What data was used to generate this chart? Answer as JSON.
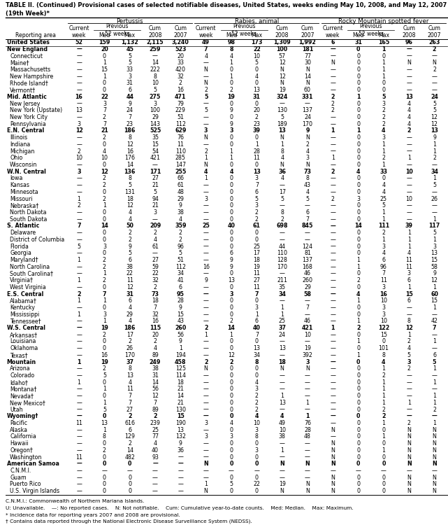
{
  "title": "TABLE II. (Continued) Provisional cases of selected notifiable diseases, United States, weeks ending May 10, 2008, and May 12, 2007",
  "title2": "(19th Week)*",
  "footnotes": [
    "C.N.M.I.: Commonwealth of Northern Mariana Islands.",
    "U: Unavailable.    —: No reported cases.    N: Not notifiable.    Cum: Cumulative year-to-date counts.    Med: Median.    Max: Maximum.",
    "* Incidence data for reporting years 2007 and 2008 are provisional.",
    "† Contains data reported through the National Electronic Disease Surveillance System (NEDSS)."
  ],
  "col_groups": [
    "Pertussis",
    "Rabies, animal",
    "Rocky Mountain spotted fever"
  ],
  "rows": [
    [
      "United States",
      "52",
      "159",
      "1,132",
      "2,115",
      "3,240",
      "49",
      "98",
      "173",
      "1,309",
      "1,992",
      "6",
      "31",
      "165",
      "96",
      "263"
    ],
    [
      "New England",
      "—",
      "20",
      "45",
      "259",
      "523",
      "7",
      "8",
      "22",
      "100",
      "181",
      "—",
      "0",
      "1",
      "—",
      "2"
    ],
    [
      "Connecticut",
      "—",
      "0",
      "5",
      "—",
      "20",
      "4",
      "4",
      "10",
      "57",
      "77",
      "—",
      "0",
      "0",
      "—",
      "—"
    ],
    [
      "Maine†",
      "—",
      "1",
      "5",
      "14",
      "33",
      "—",
      "1",
      "5",
      "12",
      "30",
      "N",
      "0",
      "1",
      "N",
      "N"
    ],
    [
      "Massachusetts",
      "—",
      "15",
      "33",
      "222",
      "420",
      "N",
      "0",
      "0",
      "N",
      "N",
      "—",
      "0",
      "1",
      "—",
      "2"
    ],
    [
      "New Hampshire",
      "—",
      "1",
      "3",
      "8",
      "32",
      "—",
      "1",
      "4",
      "12",
      "14",
      "—",
      "0",
      "1",
      "—",
      "—"
    ],
    [
      "Rhode Island†",
      "—",
      "0",
      "31",
      "10",
      "2",
      "N",
      "0",
      "0",
      "N",
      "N",
      "—",
      "0",
      "0",
      "—",
      "—"
    ],
    [
      "Vermont†",
      "—",
      "0",
      "6",
      "5",
      "16",
      "2",
      "2",
      "13",
      "19",
      "60",
      "—",
      "0",
      "0",
      "—",
      "—"
    ],
    [
      "Mid. Atlantic",
      "16",
      "22",
      "44",
      "275",
      "471",
      "5",
      "19",
      "31",
      "324",
      "331",
      "2",
      "1",
      "5",
      "13",
      "24"
    ],
    [
      "New Jersey",
      "—",
      "3",
      "9",
      "3",
      "79",
      "—",
      "0",
      "0",
      "—",
      "—",
      "2",
      "0",
      "3",
      "4",
      "5"
    ],
    [
      "New York (Upstate)",
      "13",
      "7",
      "24",
      "100",
      "229",
      "5",
      "9",
      "20",
      "130",
      "137",
      "2",
      "0",
      "2",
      "4",
      "5"
    ],
    [
      "New York City",
      "—",
      "2",
      "7",
      "29",
      "51",
      "—",
      "0",
      "2",
      "5",
      "24",
      "—",
      "0",
      "2",
      "4",
      "12"
    ],
    [
      "Pennsylvania",
      "3",
      "7",
      "23",
      "143",
      "112",
      "—",
      "9",
      "23",
      "189",
      "170",
      "—",
      "0",
      "2",
      "4",
      "12"
    ],
    [
      "E.N. Central",
      "12",
      "21",
      "186",
      "525",
      "629",
      "3",
      "3",
      "39",
      "13",
      "9",
      "1",
      "1",
      "4",
      "2",
      "13"
    ],
    [
      "Illinois",
      "—",
      "2",
      "8",
      "35",
      "76",
      "N",
      "0",
      "0",
      "N",
      "N",
      "—",
      "0",
      "3",
      "—",
      "9"
    ],
    [
      "Indiana",
      "—",
      "0",
      "12",
      "15",
      "11",
      "—",
      "0",
      "1",
      "1",
      "2",
      "—",
      "0",
      "1",
      "—",
      "1"
    ],
    [
      "Michigan",
      "2",
      "4",
      "16",
      "54",
      "110",
      "2",
      "1",
      "28",
      "8",
      "4",
      "—",
      "0",
      "1",
      "—",
      "1"
    ],
    [
      "Ohio",
      "10",
      "10",
      "176",
      "421",
      "285",
      "1",
      "1",
      "11",
      "4",
      "3",
      "1",
      "0",
      "2",
      "1",
      "2"
    ],
    [
      "Wisconsin",
      "—",
      "0",
      "14",
      "—",
      "147",
      "N",
      "0",
      "0",
      "N",
      "N",
      "—",
      "0",
      "1",
      "—",
      "—"
    ],
    [
      "W.N. Central",
      "3",
      "12",
      "136",
      "171",
      "255",
      "4",
      "4",
      "13",
      "36",
      "73",
      "2",
      "4",
      "33",
      "10",
      "34"
    ],
    [
      "Iowa",
      "—",
      "2",
      "8",
      "27",
      "66",
      "1",
      "0",
      "3",
      "4",
      "8",
      "—",
      "0",
      "0",
      "—",
      "1"
    ],
    [
      "Kansas",
      "—",
      "2",
      "5",
      "21",
      "61",
      "—",
      "0",
      "7",
      "—",
      "43",
      "—",
      "0",
      "4",
      "—",
      "5"
    ],
    [
      "Minnesota",
      "—",
      "0",
      "131",
      "5",
      "48",
      "—",
      "0",
      "6",
      "17",
      "4",
      "—",
      "0",
      "4",
      "—",
      "—"
    ],
    [
      "Missouri",
      "1",
      "2",
      "18",
      "94",
      "29",
      "3",
      "0",
      "5",
      "5",
      "5",
      "2",
      "3",
      "25",
      "10",
      "26"
    ],
    [
      "Nebraska†",
      "2",
      "1",
      "12",
      "21",
      "9",
      "—",
      "0",
      "3",
      "—",
      "—",
      "—",
      "0",
      "5",
      "—",
      "—"
    ],
    [
      "North Dakota",
      "—",
      "0",
      "4",
      "3",
      "38",
      "—",
      "0",
      "2",
      "8",
      "6",
      "—",
      "0",
      "1",
      "—",
      "—"
    ],
    [
      "South Dakota",
      "—",
      "0",
      "4",
      "—",
      "4",
      "—",
      "0",
      "2",
      "2",
      "7",
      "—",
      "0",
      "1",
      "—",
      "1"
    ],
    [
      "S. Atlantic",
      "7",
      "14",
      "50",
      "209",
      "359",
      "25",
      "40",
      "61",
      "698",
      "845",
      "—",
      "14",
      "111",
      "39",
      "117"
    ],
    [
      "Delaware",
      "—",
      "0",
      "2",
      "2",
      "2",
      "—",
      "0",
      "0",
      "—",
      "—",
      "—",
      "0",
      "2",
      "1",
      "5"
    ],
    [
      "District of Columbia",
      "—",
      "0",
      "2",
      "4",
      "2",
      "—",
      "0",
      "0",
      "—",
      "—",
      "—",
      "0",
      "1",
      "1",
      "1"
    ],
    [
      "Florida",
      "5",
      "3",
      "9",
      "61",
      "96",
      "—",
      "0",
      "25",
      "44",
      "124",
      "—",
      "0",
      "3",
      "1",
      "3"
    ],
    [
      "Georgia",
      "—",
      "0",
      "5",
      "—",
      "5",
      "—",
      "6",
      "17",
      "110",
      "81",
      "—",
      "0",
      "4",
      "4",
      "13"
    ],
    [
      "Maryland†",
      "1",
      "2",
      "6",
      "27",
      "51",
      "—",
      "9",
      "18",
      "128",
      "137",
      "—",
      "1",
      "6",
      "11",
      "15"
    ],
    [
      "North Carolina",
      "—",
      "2",
      "38",
      "59",
      "112",
      "16",
      "9",
      "19",
      "170",
      "168",
      "—",
      "1",
      "96",
      "11",
      "58"
    ],
    [
      "South Carolina†",
      "—",
      "1",
      "22",
      "22",
      "34",
      "—",
      "0",
      "11",
      "—",
      "46",
      "—",
      "0",
      "7",
      "3",
      "9"
    ],
    [
      "Virginia†",
      "1",
      "2",
      "11",
      "32",
      "41",
      "9",
      "13",
      "27",
      "211",
      "260",
      "—",
      "2",
      "11",
      "6",
      "12"
    ],
    [
      "West Virginia",
      "—",
      "0",
      "12",
      "2",
      "6",
      "—",
      "0",
      "11",
      "35",
      "29",
      "—",
      "0",
      "3",
      "1",
      "1"
    ],
    [
      "E.S. Central",
      "2",
      "7",
      "31",
      "73",
      "95",
      "—",
      "3",
      "7",
      "34",
      "58",
      "—",
      "4",
      "16",
      "15",
      "60"
    ],
    [
      "Alabama†",
      "1",
      "1",
      "6",
      "18",
      "28",
      "—",
      "0",
      "0",
      "—",
      "—",
      "—",
      "1",
      "10",
      "6",
      "15"
    ],
    [
      "Kentucky",
      "—",
      "0",
      "4",
      "7",
      "9",
      "—",
      "0",
      "3",
      "1",
      "7",
      "—",
      "0",
      "3",
      "—",
      "1"
    ],
    [
      "Mississippi",
      "1",
      "3",
      "29",
      "32",
      "15",
      "—",
      "0",
      "1",
      "1",
      "—",
      "—",
      "0",
      "3",
      "—",
      "—"
    ],
    [
      "Tennessee†",
      "—",
      "1",
      "4",
      "16",
      "43",
      "—",
      "2",
      "6",
      "25",
      "46",
      "—",
      "1",
      "10",
      "8",
      "42"
    ],
    [
      "W.S. Central",
      "—",
      "19",
      "186",
      "115",
      "260",
      "2",
      "14",
      "40",
      "37",
      "421",
      "1",
      "2",
      "122",
      "12",
      "7"
    ],
    [
      "Arkansas†",
      "—",
      "2",
      "17",
      "20",
      "56",
      "1",
      "1",
      "7",
      "24",
      "10",
      "—",
      "0",
      "15",
      "1",
      "—"
    ],
    [
      "Louisiana",
      "—",
      "0",
      "2",
      "2",
      "9",
      "—",
      "0",
      "0",
      "—",
      "—",
      "—",
      "1",
      "0",
      "2",
      "1"
    ],
    [
      "Oklahoma",
      "—",
      "0",
      "26",
      "4",
      "1",
      "—",
      "0",
      "13",
      "13",
      "19",
      "—",
      "0",
      "101",
      "4",
      "—"
    ],
    [
      "Texas†",
      "—",
      "16",
      "170",
      "89",
      "194",
      "—",
      "12",
      "34",
      "—",
      "392",
      "—",
      "1",
      "8",
      "5",
      "6"
    ],
    [
      "Mountain",
      "1",
      "19",
      "37",
      "249",
      "458",
      "2",
      "2",
      "8",
      "18",
      "3",
      "—",
      "0",
      "4",
      "3",
      "5"
    ],
    [
      "Arizona",
      "—",
      "2",
      "8",
      "38",
      "125",
      "N",
      "0",
      "0",
      "N",
      "N",
      "—",
      "0",
      "1",
      "2",
      "1"
    ],
    [
      "Colorado",
      "—",
      "5",
      "13",
      "31",
      "114",
      "—",
      "0",
      "0",
      "—",
      "—",
      "—",
      "0",
      "2",
      "—",
      "—"
    ],
    [
      "Idaho†",
      "1",
      "0",
      "4",
      "14",
      "18",
      "—",
      "0",
      "4",
      "—",
      "—",
      "—",
      "0",
      "1",
      "—",
      "1"
    ],
    [
      "Montana†",
      "—",
      "1",
      "11",
      "56",
      "21",
      "—",
      "0",
      "3",
      "—",
      "—",
      "—",
      "0",
      "1",
      "—",
      "—"
    ],
    [
      "Nevada†",
      "—",
      "0",
      "7",
      "12",
      "14",
      "—",
      "0",
      "2",
      "1",
      "—",
      "—",
      "0",
      "1",
      "—",
      "1"
    ],
    [
      "New Mexico†",
      "—",
      "1",
      "7",
      "7",
      "21",
      "—",
      "0",
      "2",
      "13",
      "1",
      "—",
      "0",
      "1",
      "1",
      "1"
    ],
    [
      "Utah",
      "—",
      "5",
      "27",
      "89",
      "130",
      "—",
      "0",
      "2",
      "—",
      "—",
      "—",
      "0",
      "2",
      "—",
      "2"
    ],
    [
      "Wyoming†",
      "—",
      "0",
      "2",
      "2",
      "15",
      "—",
      "0",
      "4",
      "4",
      "1",
      "—",
      "0",
      "2",
      "—",
      "—"
    ],
    [
      "Pacific",
      "11",
      "13",
      "616",
      "239",
      "190",
      "3",
      "4",
      "10",
      "49",
      "76",
      "—",
      "0",
      "1",
      "2",
      "1"
    ],
    [
      "Alaska",
      "—",
      "1",
      "6",
      "25",
      "13",
      "—",
      "0",
      "3",
      "10",
      "28",
      "N",
      "0",
      "0",
      "N",
      "N"
    ],
    [
      "California",
      "—",
      "8",
      "129",
      "77",
      "132",
      "3",
      "3",
      "8",
      "38",
      "48",
      "—",
      "0",
      "1",
      "N",
      "N"
    ],
    [
      "Hawaii",
      "—",
      "0",
      "2",
      "4",
      "9",
      "—",
      "0",
      "0",
      "—",
      "—",
      "N",
      "0",
      "0",
      "N",
      "N"
    ],
    [
      "Oregon†",
      "—",
      "2",
      "14",
      "40",
      "36",
      "—",
      "0",
      "3",
      "1",
      "—",
      "N",
      "0",
      "1",
      "N",
      "N"
    ],
    [
      "Washington",
      "11",
      "0",
      "482",
      "93",
      "—",
      "—",
      "0",
      "0",
      "—",
      "—",
      "N",
      "0",
      "0",
      "N",
      "N"
    ],
    [
      "American Samoa",
      "—",
      "0",
      "0",
      "—",
      "—",
      "N",
      "0",
      "0",
      "N",
      "N",
      "N",
      "0",
      "0",
      "N",
      "N"
    ],
    [
      "C.N.M.I.",
      "—",
      "—",
      "—",
      "—",
      "—",
      "—",
      "—",
      "—",
      "—",
      "—",
      "—",
      "—",
      "—",
      "—",
      "—"
    ],
    [
      "Guam",
      "—",
      "0",
      "0",
      "—",
      "—",
      "—",
      "0",
      "0",
      "—",
      "—",
      "N",
      "0",
      "0",
      "N",
      "N"
    ],
    [
      "Puerto Rico",
      "—",
      "0",
      "0",
      "—",
      "—",
      "1",
      "5",
      "22",
      "19",
      "N",
      "N",
      "0",
      "0",
      "N",
      "N"
    ],
    [
      "U.S. Virgin Islands",
      "—",
      "0",
      "0",
      "—",
      "—",
      "N",
      "0",
      "0",
      "N",
      "N",
      "N",
      "0",
      "0",
      "N",
      "N"
    ]
  ],
  "bold_rows": [
    0,
    1,
    8,
    13,
    19,
    27,
    37,
    42,
    47,
    55,
    62
  ],
  "separator_after": [
    0
  ]
}
